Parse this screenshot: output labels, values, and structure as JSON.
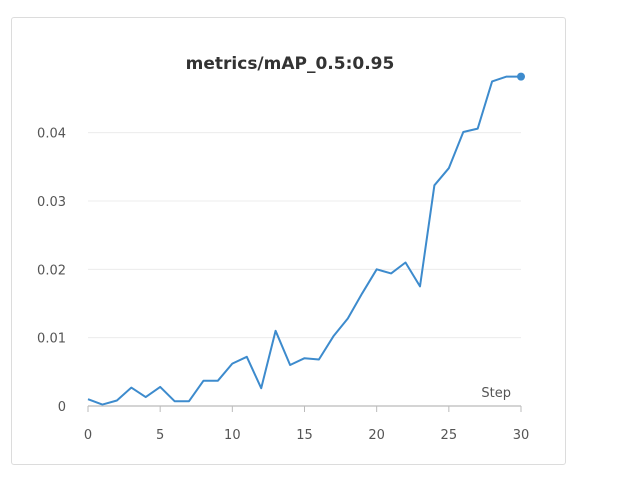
{
  "chart_data": {
    "type": "line",
    "title": "metrics/mAP_0.5:0.95",
    "xlabel": "Step",
    "ylabel": "",
    "xlim": [
      0,
      30
    ],
    "ylim": [
      0,
      0.048
    ],
    "grid": true,
    "x_ticks": [
      0,
      5,
      10,
      15,
      20,
      25,
      30
    ],
    "x_tick_labels": [
      "0",
      "5",
      "10",
      "15",
      "20",
      "25",
      "30"
    ],
    "y_ticks": [
      0,
      0.01,
      0.02,
      0.03,
      0.04
    ],
    "y_tick_labels": [
      "0",
      "0.01",
      "0.02",
      "0.03",
      "0.04"
    ],
    "series": [
      {
        "color": "#3d8bcd",
        "x": [
          0,
          1,
          2,
          3,
          4,
          5,
          6,
          7,
          8,
          9,
          10,
          11,
          12,
          13,
          14,
          15,
          16,
          17,
          18,
          19,
          20,
          21,
          22,
          23,
          24,
          25,
          26,
          27,
          28,
          29,
          30
        ],
        "y": [
          0.001,
          0.0002,
          0.0008,
          0.0027,
          0.0013,
          0.0028,
          0.0007,
          0.0007,
          0.0037,
          0.0037,
          0.0062,
          0.0072,
          0.0026,
          0.011,
          0.006,
          0.007,
          0.0068,
          0.0102,
          0.0128,
          0.0165,
          0.02,
          0.0194,
          0.021,
          0.0175,
          0.0323,
          0.0348,
          0.0401,
          0.0406,
          0.0475,
          0.0482,
          0.0482
        ]
      }
    ]
  }
}
